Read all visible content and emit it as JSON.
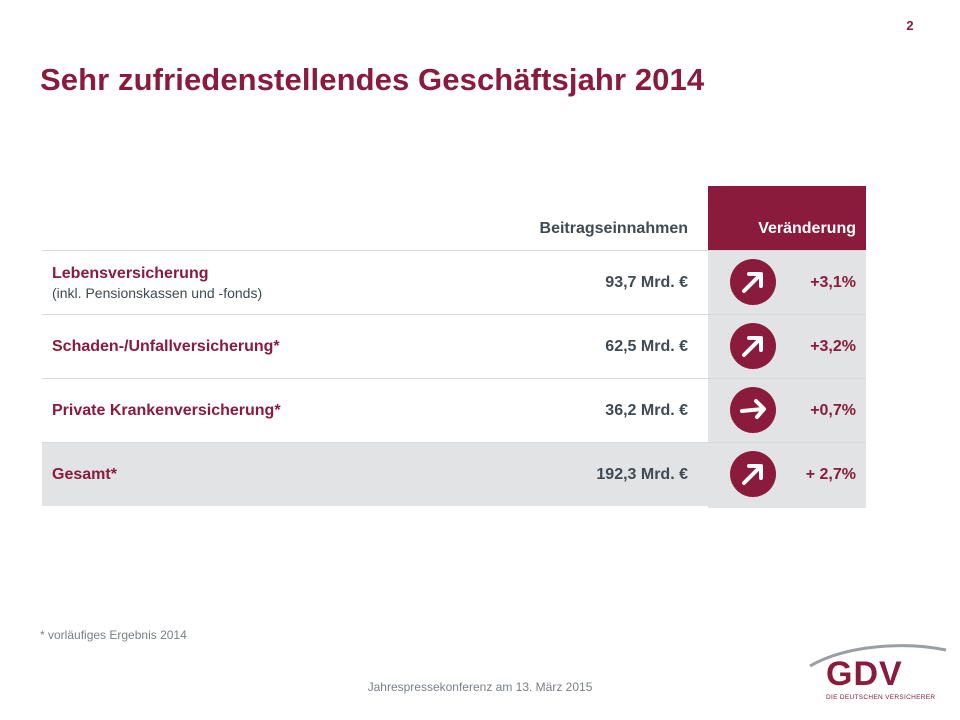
{
  "slide": {
    "page_number": "2",
    "title": "Sehr zufriedenstellendes Geschäftsjahr 2014",
    "footnote": "* vorläufiges Ergebnis 2014",
    "footer": "Jahrespressekonferenz am 13. März 2015"
  },
  "table": {
    "header_premium": "Beitragseinnahmen",
    "header_change": "Veränderung",
    "rows": [
      {
        "label": "Lebensversicherung",
        "sublabel": "(inkl. Pensionskassen und -fonds)",
        "value": "93,7 Mrd. €",
        "change": "+3,1%",
        "trend_icon": "arrow-up-right-icon"
      },
      {
        "label": "Schaden-/Unfallversicherung*",
        "sublabel": "",
        "value": "62,5 Mrd. €",
        "change": "+3,2%",
        "trend_icon": "arrow-up-right-icon"
      },
      {
        "label": "Private Krankenversicherung*",
        "sublabel": "",
        "value": "36,2 Mrd. €",
        "change": "+0,7%",
        "trend_icon": "arrow-right-icon"
      },
      {
        "label": "Gesamt*",
        "sublabel": "",
        "value": "192,3 Mrd. €",
        "change": "+ 2,7%",
        "trend_icon": "arrow-up-right-icon"
      }
    ]
  },
  "logo": {
    "text": "GDV",
    "subtext": "DIE DEUTSCHEN VERSICHERER"
  },
  "colors": {
    "accent": "#8a1b3d",
    "text": "#404a52",
    "shade": "#e2e3e4"
  }
}
